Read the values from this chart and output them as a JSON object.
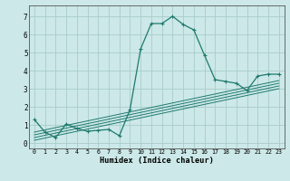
{
  "xlabel": "Humidex (Indice chaleur)",
  "bg_color": "#cce8e8",
  "grid_color": "#aacccc",
  "line_color": "#1e7a6e",
  "xlim": [
    -0.5,
    23.5
  ],
  "ylim": [
    -0.3,
    7.6
  ],
  "xticks": [
    0,
    1,
    2,
    3,
    4,
    5,
    6,
    7,
    8,
    9,
    10,
    11,
    12,
    13,
    14,
    15,
    16,
    17,
    18,
    19,
    20,
    21,
    22,
    23
  ],
  "yticks": [
    0,
    1,
    2,
    3,
    4,
    5,
    6,
    7
  ],
  "main_x": [
    0,
    1,
    2,
    3,
    4,
    5,
    6,
    7,
    8,
    9,
    10,
    11,
    12,
    13,
    14,
    15,
    16,
    17,
    18,
    19,
    20,
    21,
    22,
    23
  ],
  "main_y": [
    1.3,
    0.6,
    0.3,
    1.05,
    0.8,
    0.65,
    0.7,
    0.75,
    0.4,
    1.85,
    5.2,
    6.6,
    6.6,
    7.0,
    6.55,
    6.25,
    4.85,
    3.5,
    3.4,
    3.3,
    2.9,
    3.7,
    3.8,
    3.8
  ],
  "trend_lines": [
    {
      "x0": 0,
      "y0": 0.15,
      "x1": 23,
      "y1": 3.0
    },
    {
      "x0": 0,
      "y0": 0.3,
      "x1": 23,
      "y1": 3.15
    },
    {
      "x0": 0,
      "y0": 0.45,
      "x1": 23,
      "y1": 3.3
    },
    {
      "x0": 0,
      "y0": 0.6,
      "x1": 23,
      "y1": 3.45
    }
  ]
}
